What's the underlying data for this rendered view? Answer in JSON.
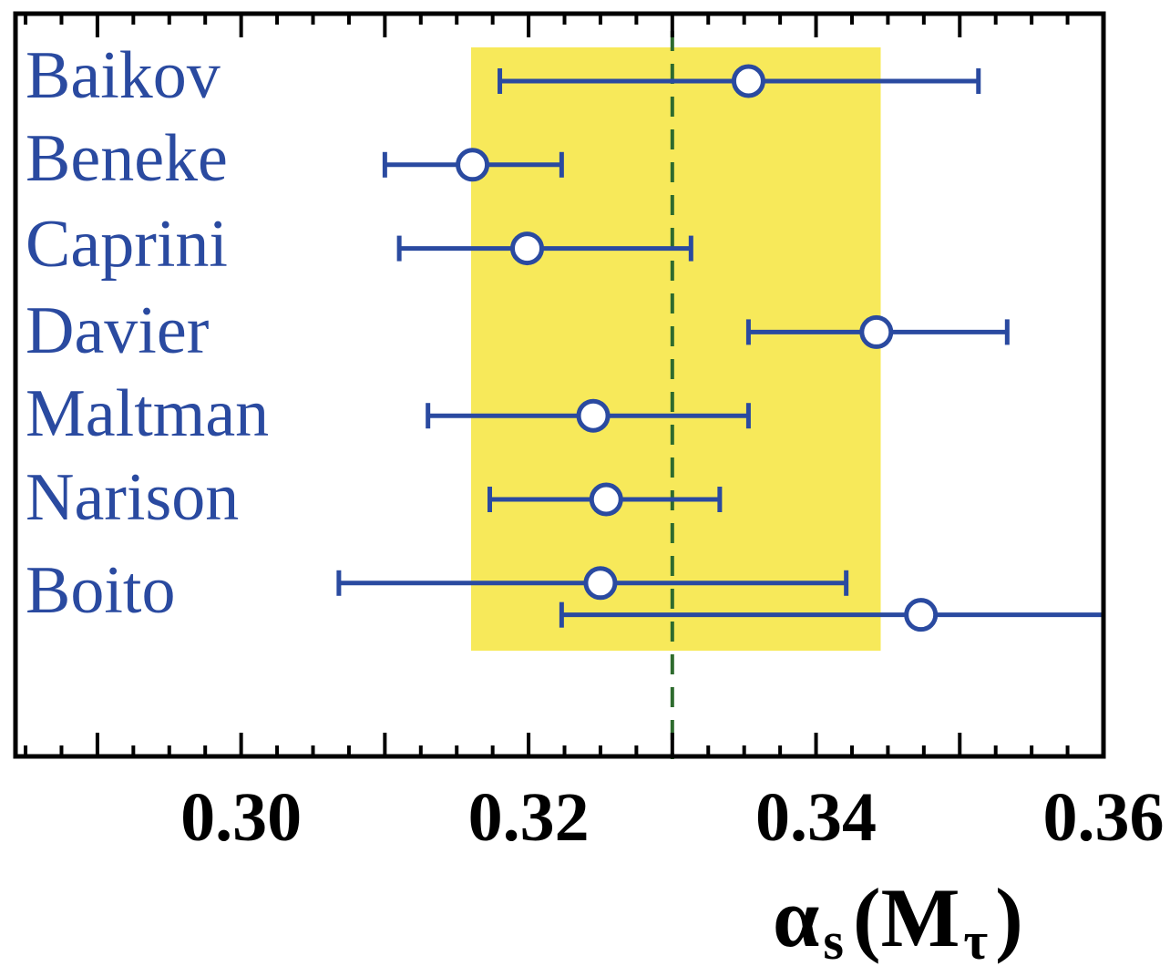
{
  "chart_data": {
    "type": "scatter",
    "xlabel_symbol": "α",
    "xlabel_sub": "s",
    "xlabel_open": "(M",
    "xlabel_sub2": "τ",
    "xlabel_close": ")",
    "xlim": [
      0.2843,
      0.36
    ],
    "x_ticks": [
      "0.30",
      "0.32",
      "0.34",
      "0.36"
    ],
    "x_tick_values": [
      0.3,
      0.32,
      0.34,
      0.36
    ],
    "reference_line": 0.33,
    "band": [
      0.316,
      0.3445
    ],
    "colors": {
      "band": "#f7e95a",
      "points": "#2a4aa0",
      "reference": "#2e6b2e",
      "axis": "#000000"
    },
    "labels": [
      "Baikov",
      "Beneke",
      "Caprini",
      "Davier",
      "Maltman",
      "Narison",
      "Boito"
    ],
    "points": [
      {
        "row": 0,
        "value": 0.3353,
        "low": 0.318,
        "high": 0.3513
      },
      {
        "row": 1,
        "value": 0.3161,
        "low": 0.31,
        "high": 0.3223
      },
      {
        "row": 2,
        "value": 0.3199,
        "low": 0.311,
        "high": 0.3313
      },
      {
        "row": 3,
        "value": 0.3442,
        "low": 0.3353,
        "high": 0.3533
      },
      {
        "row": 4,
        "value": 0.3245,
        "low": 0.313,
        "high": 0.3353
      },
      {
        "row": 5,
        "value": 0.3254,
        "low": 0.3173,
        "high": 0.3333
      },
      {
        "row": 6,
        "value": 0.325,
        "low": 0.3068,
        "high": 0.3421
      },
      {
        "row": 6.38,
        "value": 0.3473,
        "low": 0.3223,
        "high": 0.36
      }
    ]
  }
}
